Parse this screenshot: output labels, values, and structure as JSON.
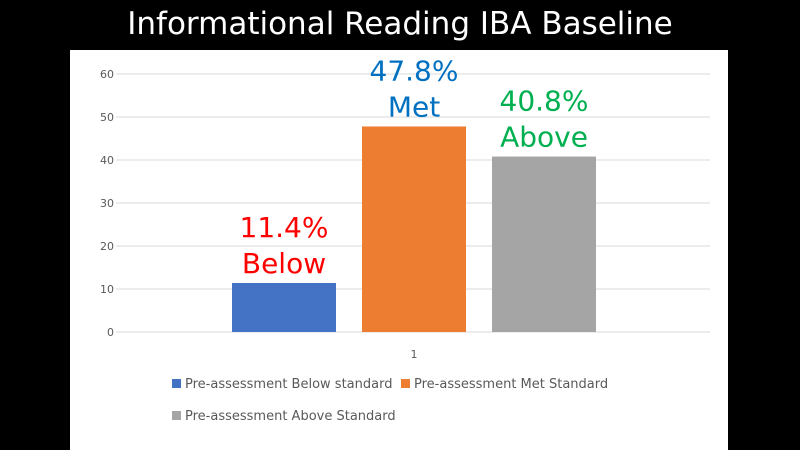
{
  "title": "Informational Reading IBA Baseline",
  "chart_data": {
    "type": "bar",
    "categories": [
      "1"
    ],
    "series": [
      {
        "name": "Pre-assessment Below standard",
        "values": [
          11.4
        ],
        "color": "#4472C4",
        "label_lines": [
          "11.4%",
          "Below"
        ],
        "label_color": "#FF0000"
      },
      {
        "name": "Pre-assessment Met Standard",
        "values": [
          47.8
        ],
        "color": "#ED7D31",
        "label_lines": [
          "47.8%",
          "Met"
        ],
        "label_color": "#0070C0"
      },
      {
        "name": "Pre-assessment Above Standard",
        "values": [
          40.8
        ],
        "color": "#A5A5A5",
        "label_lines": [
          "40.8%",
          "Above"
        ],
        "label_color": "#00B050"
      }
    ],
    "ylim": [
      0,
      60
    ],
    "yticks": [
      0,
      10,
      20,
      30,
      40,
      50,
      60
    ],
    "grid": true,
    "legend": "bottom"
  }
}
